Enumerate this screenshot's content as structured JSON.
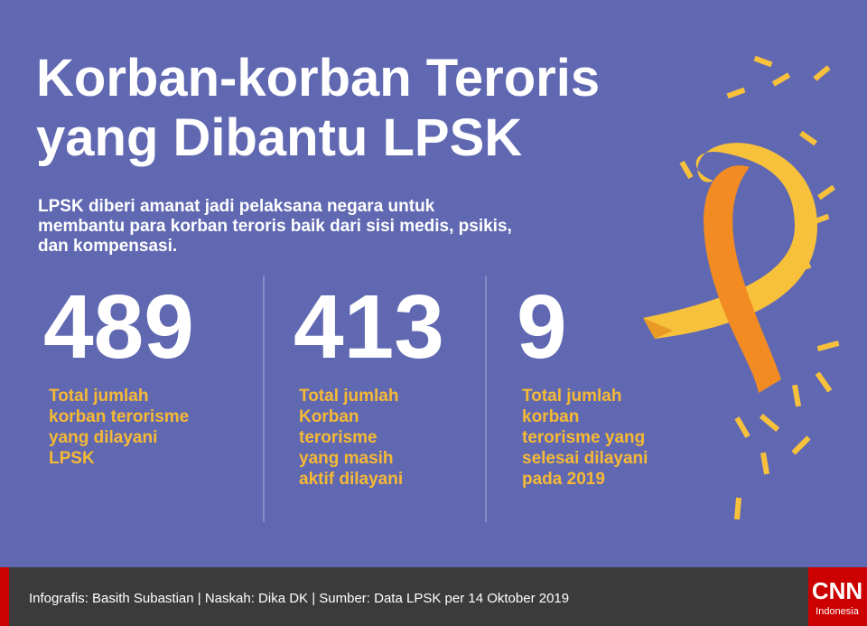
{
  "header": {
    "title": [
      "Korban-korban Teroris",
      "yang Dibantu LPSK"
    ],
    "description": [
      "LPSK diberi amanat jadi pelaksana negara untuk",
      "membantu para korban teroris baik dari sisi medis, psikis,",
      "dan kompensasi."
    ]
  },
  "stats": [
    {
      "value": 489,
      "label": [
        "Total jumlah",
        "korban terorisme",
        "yang dilayani",
        "LPSK"
      ]
    },
    {
      "value": 413,
      "label": [
        "Total jumlah",
        "Korban",
        "terorisme",
        "yang masih",
        "aktif dilayani"
      ]
    },
    {
      "value": 9,
      "label": [
        "Total jumlah",
        "korban",
        "terorisme yang",
        "selesai dilayani",
        "pada 2019"
      ]
    }
  ],
  "footer": {
    "credits": "Infografis: Basith Subastian | Naskah: Dika DK | Sumber: Data LPSK per 14 Oktober 2019",
    "logo": [
      "CNN",
      "Indonesia"
    ]
  }
}
